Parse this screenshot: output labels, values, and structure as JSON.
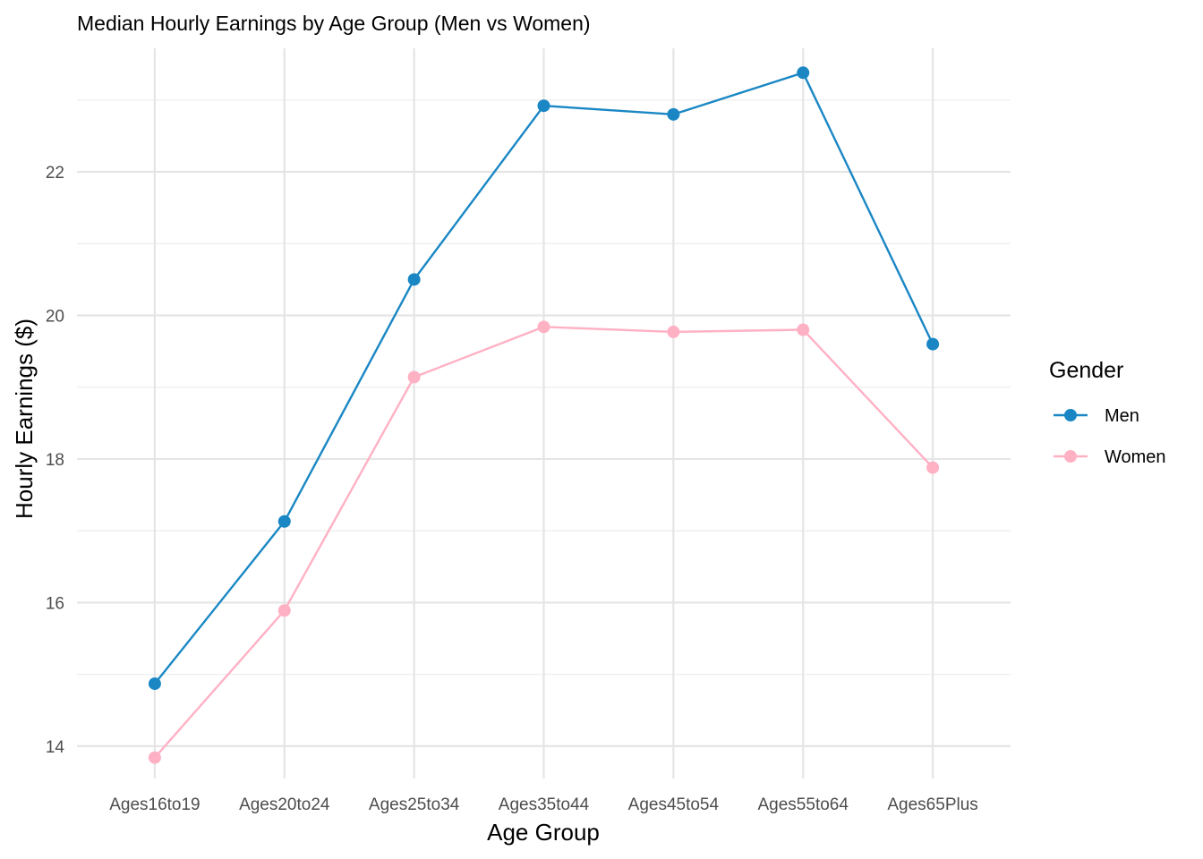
{
  "chart_data": {
    "type": "line",
    "title": "Median Hourly Earnings by Age Group (Men vs Women)",
    "xlabel": "Age Group",
    "ylabel": "Hourly Earnings ($)",
    "categories": [
      "Ages16to19",
      "Ages20to24",
      "Ages25to34",
      "Ages35to44",
      "Ages45to54",
      "Ages55to64",
      "Ages65Plus"
    ],
    "series": [
      {
        "name": "Men",
        "color": "#1a87c4",
        "values": [
          14.87,
          17.13,
          20.5,
          22.92,
          22.8,
          23.38,
          19.6
        ]
      },
      {
        "name": "Women",
        "color": "#ffb1c4",
        "values": [
          13.84,
          15.89,
          19.14,
          19.84,
          19.77,
          19.8,
          17.88
        ]
      }
    ],
    "ylim": [
      13.55,
      23.72
    ],
    "yticks": [
      14,
      16,
      18,
      20,
      22
    ],
    "grid": true,
    "legend": {
      "title": "Gender",
      "position": "right"
    }
  }
}
